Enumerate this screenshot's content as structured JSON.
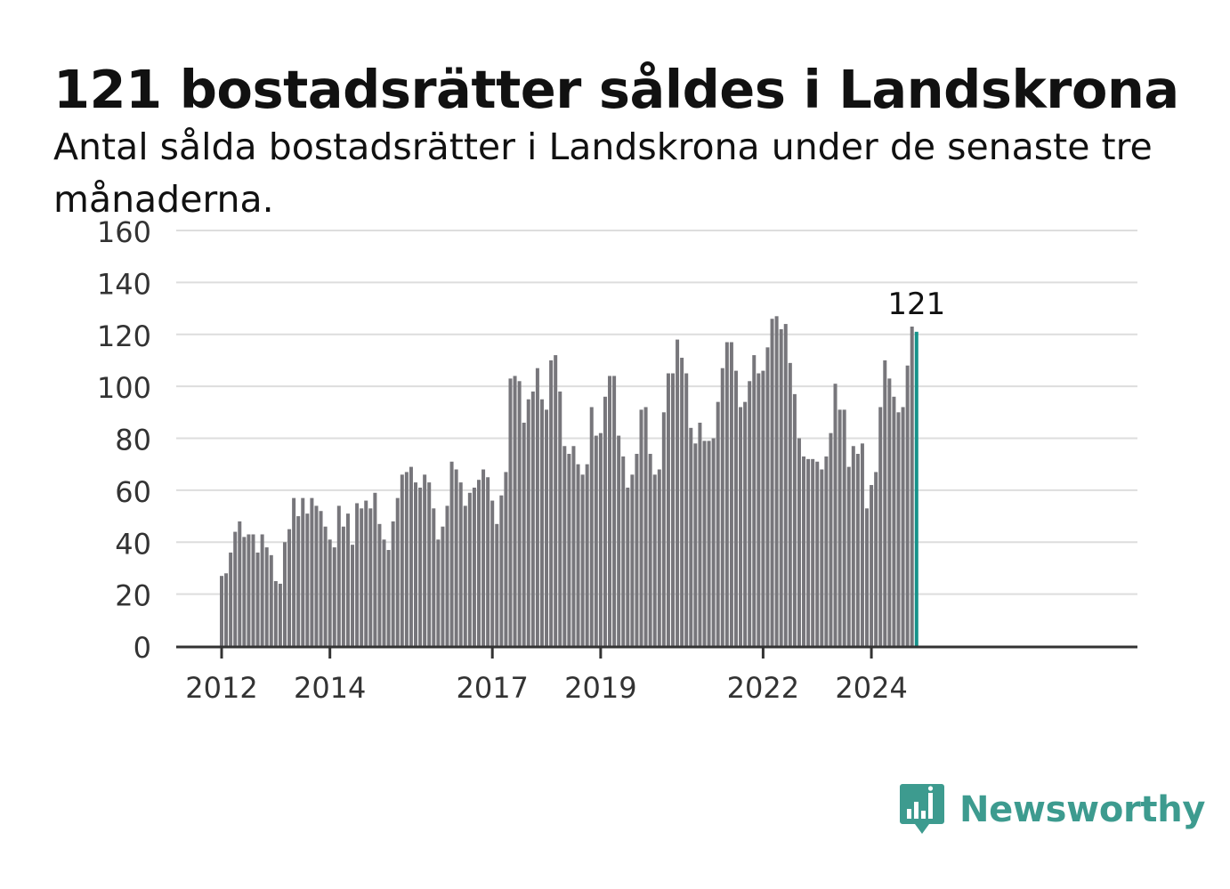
{
  "chart_data": {
    "type": "bar",
    "title": "121 bostadsrätter såldes i Landskrona",
    "subtitle": "Antal sålda bostadsrätter i Landskrona under de senaste tre månaderna.",
    "ylim": [
      0,
      160
    ],
    "yticks": [
      0,
      20,
      40,
      60,
      80,
      100,
      120,
      140,
      160
    ],
    "xtick_labels": [
      "2012",
      "2014",
      "2017",
      "2019",
      "2022",
      "2024"
    ],
    "xtick_index": [
      0,
      24,
      60,
      84,
      120,
      144
    ],
    "grid": true,
    "highlight_label": "121",
    "values": [
      27,
      28,
      36,
      44,
      48,
      42,
      43,
      43,
      36,
      43,
      38,
      35,
      25,
      24,
      40,
      45,
      57,
      50,
      57,
      51,
      57,
      54,
      52,
      46,
      41,
      38,
      54,
      46,
      51,
      39,
      55,
      53,
      56,
      53,
      59,
      47,
      41,
      37,
      48,
      57,
      66,
      67,
      69,
      63,
      61,
      66,
      63,
      53,
      41,
      46,
      54,
      71,
      68,
      63,
      54,
      59,
      61,
      64,
      68,
      65,
      56,
      47,
      58,
      67,
      103,
      104,
      102,
      86,
      95,
      98,
      107,
      95,
      91,
      110,
      112,
      98,
      77,
      74,
      77,
      70,
      66,
      70,
      92,
      81,
      82,
      96,
      104,
      104,
      81,
      73,
      61,
      66,
      74,
      91,
      92,
      74,
      66,
      68,
      90,
      105,
      105,
      118,
      111,
      105,
      84,
      78,
      86,
      79,
      79,
      80,
      94,
      107,
      117,
      117,
      106,
      92,
      94,
      102,
      112,
      105,
      106,
      115,
      126,
      127,
      122,
      124,
      109,
      97,
      80,
      73,
      72,
      72,
      71,
      68,
      73,
      82,
      101,
      91,
      91,
      69,
      77,
      74,
      78,
      53,
      62,
      67,
      92,
      110,
      103,
      96,
      90,
      92,
      108,
      123,
      121
    ]
  },
  "colors": {
    "bar": "#77767b",
    "highlight": "#16928a",
    "grid": "#dddddd",
    "axis": "#333333",
    "brand": "#3d9b8f"
  },
  "logo": {
    "text": "Newsworthy",
    "icon": "newsworthy-logo-icon"
  }
}
